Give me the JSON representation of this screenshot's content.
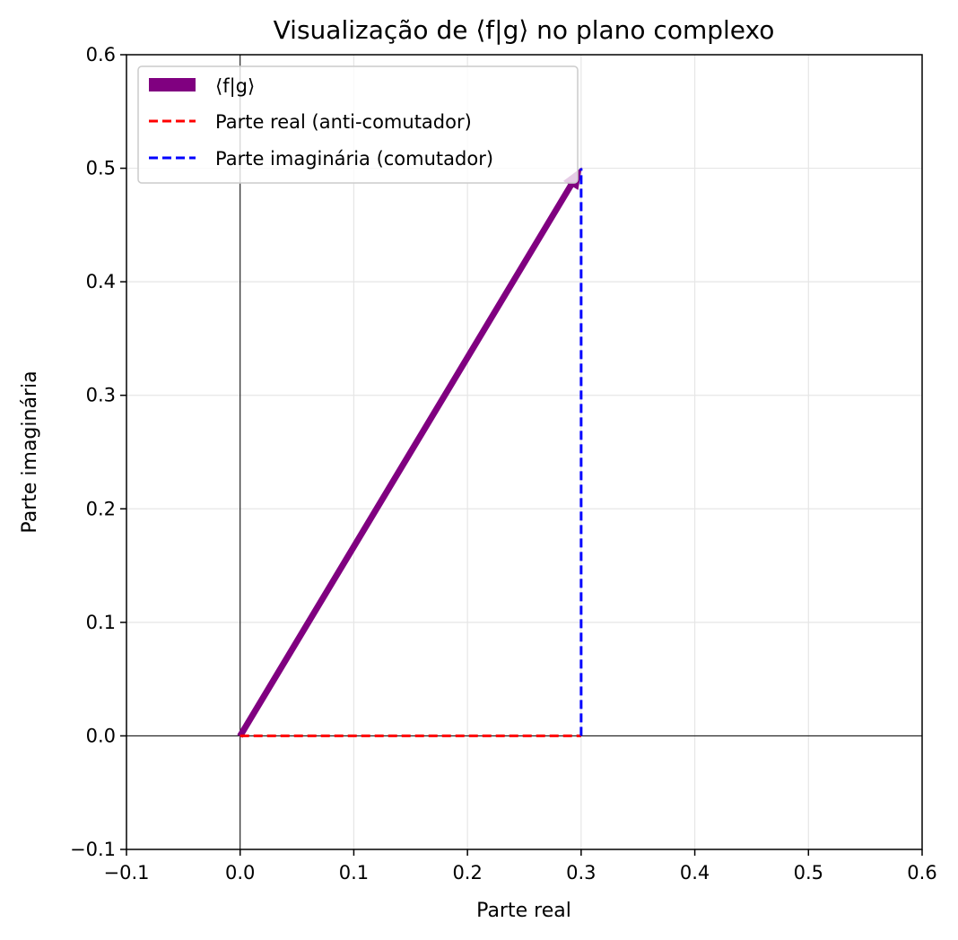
{
  "chart_data": {
    "type": "line",
    "title": "Visualização de ⟨f|g⟩ no plano complexo",
    "xlabel": "Parte real",
    "ylabel": "Parte imaginária",
    "xlim": [
      -0.1,
      0.6
    ],
    "ylim": [
      -0.1,
      0.6
    ],
    "xticks": [
      "−0.1",
      "0.0",
      "0.1",
      "0.2",
      "0.3",
      "0.4",
      "0.5",
      "0.6"
    ],
    "yticks": [
      "−0.1",
      "0.0",
      "0.1",
      "0.2",
      "0.3",
      "0.4",
      "0.5",
      "0.6"
    ],
    "tick_values": [
      -0.1,
      0.0,
      0.1,
      0.2,
      0.3,
      0.4,
      0.5,
      0.6
    ],
    "grid": true,
    "legend_position": "upper-left",
    "series": [
      {
        "name": "⟨f|g⟩",
        "kind": "arrow",
        "x": [
          0.0,
          0.3
        ],
        "y": [
          0.0,
          0.5
        ],
        "color": "#800080"
      },
      {
        "name": "Parte real (anti-comutador)",
        "kind": "dashed-line",
        "x": [
          0.0,
          0.3
        ],
        "y": [
          0.0,
          0.0
        ],
        "color": "#ff0000"
      },
      {
        "name": "Parte imaginária (comutador)",
        "kind": "dashed-line",
        "x": [
          0.3,
          0.3
        ],
        "y": [
          0.0,
          0.5
        ],
        "color": "#0000ff"
      }
    ]
  }
}
